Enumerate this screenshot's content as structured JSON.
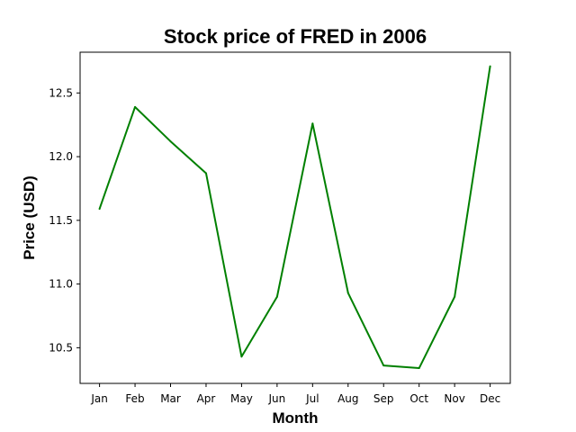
{
  "chart_data": {
    "type": "line",
    "title": "Stock price of FRED in 2006",
    "xlabel": "Month",
    "ylabel": "Price (USD)",
    "categories": [
      "Jan",
      "Feb",
      "Mar",
      "Apr",
      "May",
      "Jun",
      "Jul",
      "Aug",
      "Sep",
      "Oct",
      "Nov",
      "Dec"
    ],
    "series": [
      {
        "values": [
          11.59,
          12.39,
          12.12,
          11.87,
          10.43,
          10.9,
          12.26,
          10.93,
          10.36,
          10.34,
          10.9,
          12.71
        ],
        "color": "#008000"
      }
    ],
    "ylim": [
      10.22,
      12.82
    ],
    "yticks": [
      10.5,
      11.0,
      11.5,
      12.0,
      12.5
    ],
    "ytick_labels": [
      "10.5",
      "11.0",
      "11.5",
      "12.0",
      "12.5"
    ],
    "grid": false,
    "legend": false
  }
}
